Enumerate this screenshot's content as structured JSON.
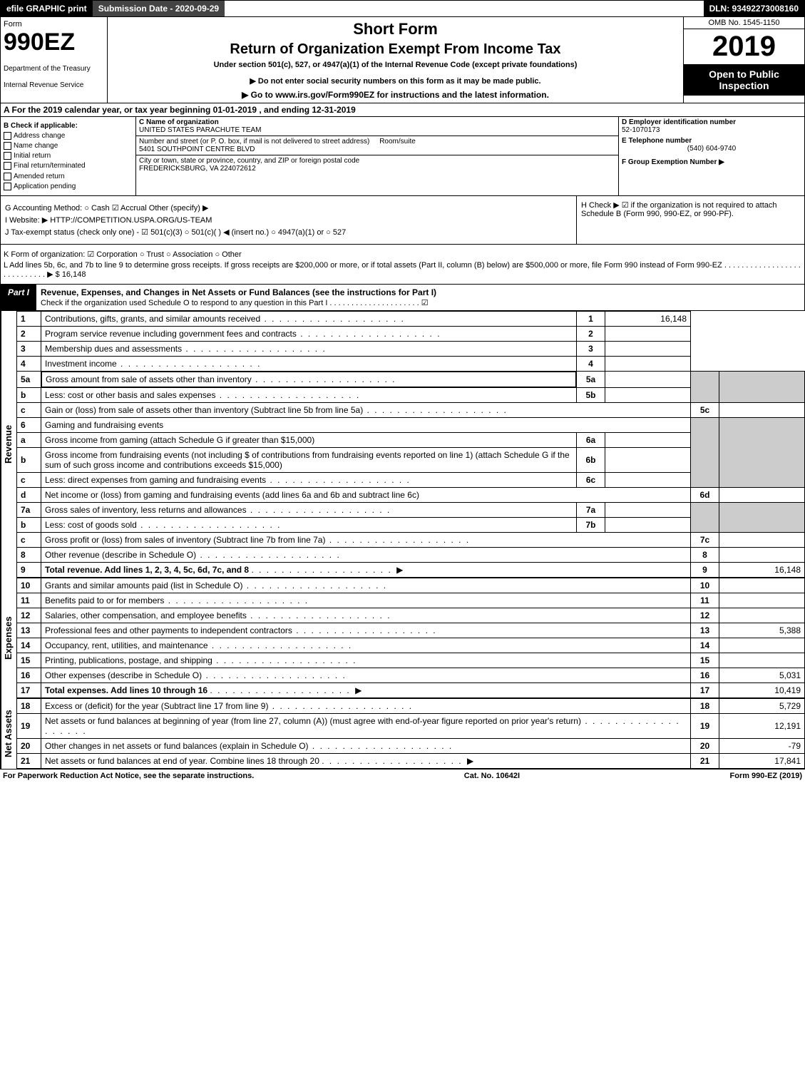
{
  "topbar": {
    "efile": "efile GRAPHIC print",
    "subdate": "Submission Date - 2020-09-29",
    "dln": "DLN: 93492273008160"
  },
  "header": {
    "form_word": "Form",
    "form_num": "990EZ",
    "dept": "Department of the Treasury",
    "irs": "Internal Revenue Service",
    "short": "Short Form",
    "return_title": "Return of Organization Exempt From Income Tax",
    "under": "Under section 501(c), 527, or 4947(a)(1) of the Internal Revenue Code (except private foundations)",
    "noenter": "▶ Do not enter social security numbers on this form as it may be made public.",
    "goto": "▶ Go to www.irs.gov/Form990EZ for instructions and the latest information.",
    "omb": "OMB No. 1545-1150",
    "year": "2019",
    "open": "Open to Public Inspection"
  },
  "rowA": "A For the 2019 calendar year, or tax year beginning 01-01-2019 , and ending 12-31-2019",
  "colB": {
    "title": "B Check if applicable:",
    "items": [
      "Address change",
      "Name change",
      "Initial return",
      "Final return/terminated",
      "Amended return",
      "Application pending"
    ]
  },
  "colC": {
    "name_lbl": "C Name of organization",
    "name_val": "UNITED STATES PARACHUTE TEAM",
    "addr_lbl": "Number and street (or P. O. box, if mail is not delivered to street address)",
    "room_lbl": "Room/suite",
    "addr_val": "5401 SOUTHPOINT CENTRE BLVD",
    "city_lbl": "City or town, state or province, country, and ZIP or foreign postal code",
    "city_val": "FREDERICKSBURG, VA  224072612"
  },
  "colD": {
    "ein_lbl": "D Employer identification number",
    "ein_val": "52-1070173",
    "tel_lbl": "E Telephone number",
    "tel_val": "(540) 604-9740",
    "grp_lbl": "F Group Exemption Number ▶"
  },
  "gih": {
    "G": "G Accounting Method:   ○ Cash   ☑ Accrual   Other (specify) ▶",
    "I": "I Website: ▶ HTTP://COMPETITION.USPA.ORG/US-TEAM",
    "J": "J Tax-exempt status (check only one) - ☑ 501(c)(3)  ○ 501(c)( ) ◀ (insert no.)  ○ 4947(a)(1) or  ○ 527",
    "H": "H  Check ▶ ☑ if the organization is not required to attach Schedule B (Form 990, 990-EZ, or 990-PF)."
  },
  "K": "K Form of organization:   ☑ Corporation   ○ Trust   ○ Association   ○ Other",
  "L": "L Add lines 5b, 6c, and 7b to line 9 to determine gross receipts. If gross receipts are $200,000 or more, or if total assets (Part II, column (B) below) are $500,000 or more, file Form 990 instead of Form 990-EZ  . . . . . . . . . . . . . . . . . . . . . . . . . . . .  ▶ $ 16,148",
  "partI": {
    "tag": "Part I",
    "title": "Revenue, Expenses, and Changes in Net Assets or Fund Balances (see the instructions for Part I)",
    "checknote": "Check if the organization used Schedule O to respond to any question in this Part I . . . . . . . . . . . . . . . . . . . . .  ☑"
  },
  "rev_label": "Revenue",
  "exp_label": "Expenses",
  "na_label": "Net Assets",
  "lines": {
    "l1": {
      "n": "1",
      "d": "Contributions, gifts, grants, and similar amounts received",
      "c": "1",
      "a": "16,148"
    },
    "l2": {
      "n": "2",
      "d": "Program service revenue including government fees and contracts",
      "c": "2",
      "a": ""
    },
    "l3": {
      "n": "3",
      "d": "Membership dues and assessments",
      "c": "3",
      "a": ""
    },
    "l4": {
      "n": "4",
      "d": "Investment income",
      "c": "4",
      "a": ""
    },
    "l5a": {
      "n": "5a",
      "d": "Gross amount from sale of assets other than inventory",
      "sn": "5a"
    },
    "l5b": {
      "n": "b",
      "d": "Less: cost or other basis and sales expenses",
      "sn": "5b"
    },
    "l5c": {
      "n": "c",
      "d": "Gain or (loss) from sale of assets other than inventory (Subtract line 5b from line 5a)",
      "c": "5c",
      "a": ""
    },
    "l6": {
      "n": "6",
      "d": "Gaming and fundraising events"
    },
    "l6a": {
      "n": "a",
      "d": "Gross income from gaming (attach Schedule G if greater than $15,000)",
      "sn": "6a"
    },
    "l6b": {
      "n": "b",
      "d": "Gross income from fundraising events (not including $                 of contributions from fundraising events reported on line 1) (attach Schedule G if the sum of such gross income and contributions exceeds $15,000)",
      "sn": "6b"
    },
    "l6c": {
      "n": "c",
      "d": "Less: direct expenses from gaming and fundraising events",
      "sn": "6c"
    },
    "l6d": {
      "n": "d",
      "d": "Net income or (loss) from gaming and fundraising events (add lines 6a and 6b and subtract line 6c)",
      "c": "6d",
      "a": ""
    },
    "l7a": {
      "n": "7a",
      "d": "Gross sales of inventory, less returns and allowances",
      "sn": "7a"
    },
    "l7b": {
      "n": "b",
      "d": "Less: cost of goods sold",
      "sn": "7b"
    },
    "l7c": {
      "n": "c",
      "d": "Gross profit or (loss) from sales of inventory (Subtract line 7b from line 7a)",
      "c": "7c",
      "a": ""
    },
    "l8": {
      "n": "8",
      "d": "Other revenue (describe in Schedule O)",
      "c": "8",
      "a": ""
    },
    "l9": {
      "n": "9",
      "d": "Total revenue. Add lines 1, 2, 3, 4, 5c, 6d, 7c, and 8",
      "c": "9",
      "a": "16,148",
      "bold": true,
      "arrow": true
    },
    "l10": {
      "n": "10",
      "d": "Grants and similar amounts paid (list in Schedule O)",
      "c": "10",
      "a": ""
    },
    "l11": {
      "n": "11",
      "d": "Benefits paid to or for members",
      "c": "11",
      "a": ""
    },
    "l12": {
      "n": "12",
      "d": "Salaries, other compensation, and employee benefits",
      "c": "12",
      "a": ""
    },
    "l13": {
      "n": "13",
      "d": "Professional fees and other payments to independent contractors",
      "c": "13",
      "a": "5,388"
    },
    "l14": {
      "n": "14",
      "d": "Occupancy, rent, utilities, and maintenance",
      "c": "14",
      "a": ""
    },
    "l15": {
      "n": "15",
      "d": "Printing, publications, postage, and shipping",
      "c": "15",
      "a": ""
    },
    "l16": {
      "n": "16",
      "d": "Other expenses (describe in Schedule O)",
      "c": "16",
      "a": "5,031"
    },
    "l17": {
      "n": "17",
      "d": "Total expenses. Add lines 10 through 16",
      "c": "17",
      "a": "10,419",
      "bold": true,
      "arrow": true
    },
    "l18": {
      "n": "18",
      "d": "Excess or (deficit) for the year (Subtract line 17 from line 9)",
      "c": "18",
      "a": "5,729"
    },
    "l19": {
      "n": "19",
      "d": "Net assets or fund balances at beginning of year (from line 27, column (A)) (must agree with end-of-year figure reported on prior year's return)",
      "c": "19",
      "a": "12,191"
    },
    "l20": {
      "n": "20",
      "d": "Other changes in net assets or fund balances (explain in Schedule O)",
      "c": "20",
      "a": "-79"
    },
    "l21": {
      "n": "21",
      "d": "Net assets or fund balances at end of year. Combine lines 18 through 20",
      "c": "21",
      "a": "17,841",
      "arrow": true
    }
  },
  "footer": {
    "left": "For Paperwork Reduction Act Notice, see the separate instructions.",
    "mid": "Cat. No. 10642I",
    "right": "Form 990-EZ (2019)"
  }
}
